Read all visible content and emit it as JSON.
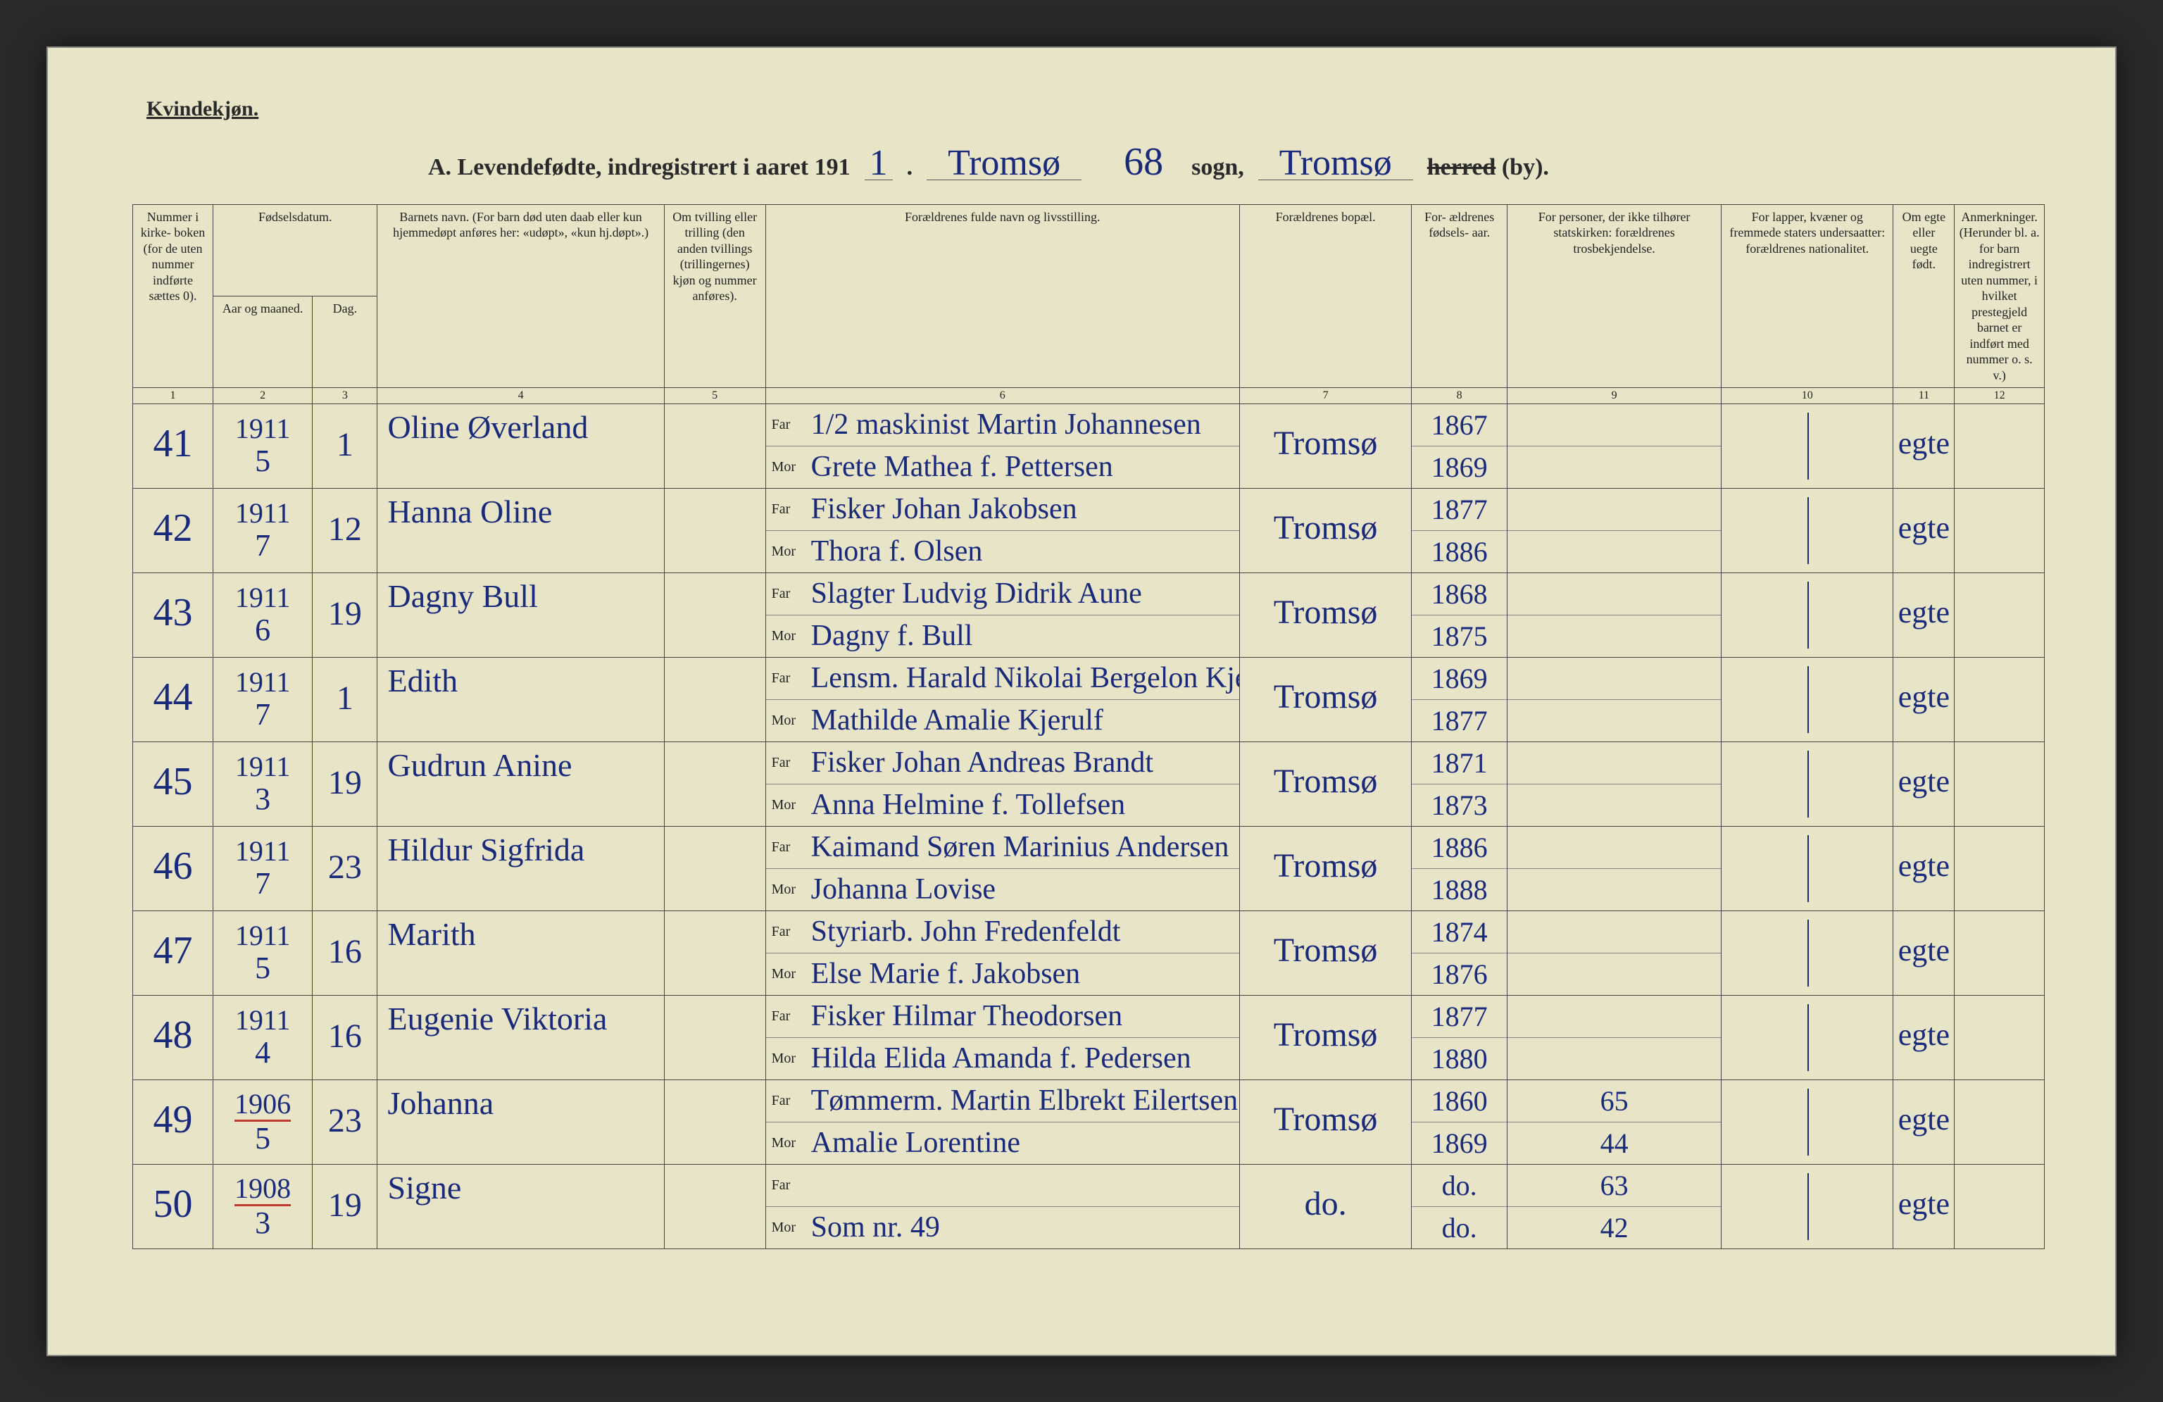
{
  "page": {
    "gender_label": "Kvindekjøn.",
    "page_number": "68",
    "title_prefix": "A. Levendefødte, indregistrert i aaret 191",
    "title_year_suffix": "1",
    "sogn_label": "sogn,",
    "sogn_value": "Tromsø",
    "herred_label": "herred",
    "herred_value": "Tromsø",
    "herred_struck": "herred",
    "herred_by": "(by)."
  },
  "columns": {
    "c1": "Nummer i kirke- boken (for de uten nummer indførte sættes 0).",
    "c2_group": "Fødselsdatum.",
    "c2a": "Aar og maaned.",
    "c2b": "Dag.",
    "c4": "Barnets navn.\n(For barn død uten daab eller kun hjemmedøpt anføres her: «udøpt», «kun hj.døpt».)",
    "c5": "Om tvilling eller trilling (den anden tvillings (trillingernes) kjøn og nummer anføres).",
    "c6": "Forældrenes fulde navn og livsstilling.",
    "c7": "Forældrenes bopæl.",
    "c8": "For- ældrenes fødsels- aar.",
    "c9": "For personer, der ikke tilhører statskirken: forældrenes trosbekjendelse.",
    "c10": "For lapper, kvæner og fremmede staters undersaatter: forældrenes nationalitet.",
    "c11": "Om egte eller uegte født.",
    "c12": "Anmerkninger.\n(Herunder bl. a. for barn indregistrert uten nummer, i hvilket prestegjeld barnet er indført med nummer o. s. v.)",
    "nums": [
      "1",
      "2",
      "3",
      "4",
      "5",
      "6",
      "7",
      "8",
      "9",
      "10",
      "11",
      "12"
    ],
    "far_label": "Far",
    "mor_label": "Mor"
  },
  "col_widths_pct": [
    4.2,
    5.2,
    3.4,
    15.0,
    5.3,
    24.8,
    9.0,
    5.0,
    11.2,
    9.0,
    3.2,
    4.7
  ],
  "colors": {
    "paper": "#e8e4c8",
    "ink_print": "#2a2a2a",
    "ink_hand": "#1a2a7a",
    "rule": "#444444",
    "red": "#c0392b"
  },
  "rows": [
    {
      "num": "41",
      "year": "1911",
      "month": "5",
      "day": "1",
      "year_red": false,
      "name": "Oline Øverland",
      "far": "1/2 maskinist Martin Johannesen",
      "mor": "Grete Mathea f. Pettersen",
      "bopael": "Tromsø",
      "far_year": "1867",
      "mor_year": "1869",
      "tros_far": "",
      "tros_mor": "",
      "egte": "egte"
    },
    {
      "num": "42",
      "year": "1911",
      "month": "7",
      "day": "12",
      "year_red": false,
      "name": "Hanna Oline",
      "far": "Fisker Johan Jakobsen",
      "mor": "Thora f. Olsen",
      "bopael": "Tromsø",
      "far_year": "1877",
      "mor_year": "1886",
      "tros_far": "",
      "tros_mor": "",
      "egte": "egte"
    },
    {
      "num": "43",
      "year": "1911",
      "month": "6",
      "day": "19",
      "year_red": false,
      "name": "Dagny Bull",
      "far": "Slagter Ludvig Didrik Aune",
      "mor": "Dagny f. Bull",
      "bopael": "Tromsø",
      "far_year": "1868",
      "mor_year": "1875",
      "tros_far": "",
      "tros_mor": "",
      "egte": "egte"
    },
    {
      "num": "44",
      "year": "1911",
      "month": "7",
      "day": "1",
      "year_red": false,
      "name": "Edith",
      "far": "Lensm. Harald Nikolai Bergelon Kjeldsen",
      "mor": "Mathilde Amalie Kjerulf",
      "bopael": "Tromsø",
      "far_year": "1869",
      "mor_year": "1877",
      "tros_far": "",
      "tros_mor": "",
      "egte": "egte"
    },
    {
      "num": "45",
      "year": "1911",
      "month": "3",
      "day": "19",
      "year_red": false,
      "name": "Gudrun Anine",
      "far": "Fisker Johan Andreas Brandt",
      "mor": "Anna Helmine f. Tollefsen",
      "bopael": "Tromsø",
      "far_year": "1871",
      "mor_year": "1873",
      "tros_far": "",
      "tros_mor": "",
      "egte": "egte"
    },
    {
      "num": "46",
      "year": "1911",
      "month": "7",
      "day": "23",
      "year_red": false,
      "name": "Hildur Sigfrida",
      "far": "Kaimand Søren Marinius Andersen",
      "mor": "Johanna Lovise",
      "bopael": "Tromsø",
      "far_year": "1886",
      "mor_year": "1888",
      "tros_far": "",
      "tros_mor": "",
      "egte": "egte"
    },
    {
      "num": "47",
      "year": "1911",
      "month": "5",
      "day": "16",
      "year_red": false,
      "name": "Marith",
      "far": "Styriarb. John Fredenfeldt",
      "mor": "Else Marie f. Jakobsen",
      "bopael": "Tromsø",
      "far_year": "1874",
      "mor_year": "1876",
      "tros_far": "",
      "tros_mor": "",
      "egte": "egte"
    },
    {
      "num": "48",
      "year": "1911",
      "month": "4",
      "day": "16",
      "year_red": false,
      "name": "Eugenie Viktoria",
      "far": "Fisker Hilmar Theodorsen",
      "mor": "Hilda Elida Amanda f. Pedersen",
      "bopael": "Tromsø",
      "far_year": "1877",
      "mor_year": "1880",
      "tros_far": "",
      "tros_mor": "",
      "egte": "egte"
    },
    {
      "num": "49",
      "year": "1906",
      "month": "5",
      "day": "23",
      "year_red": true,
      "name": "Johanna",
      "far": "Tømmerm. Martin Elbrekt Eilertsen",
      "mor": "Amalie Lorentine",
      "bopael": "Tromsø",
      "far_year": "1860",
      "mor_year": "1869",
      "tros_far": "65",
      "tros_mor": "44",
      "egte": "egte"
    },
    {
      "num": "50",
      "year": "1908",
      "month": "3",
      "day": "19",
      "year_red": true,
      "name": "Signe",
      "far": "",
      "mor": "Som nr. 49",
      "bopael": "do.",
      "far_year": "do.",
      "mor_year": "do.",
      "tros_far": "63",
      "tros_mor": "42",
      "egte": "egte"
    }
  ]
}
